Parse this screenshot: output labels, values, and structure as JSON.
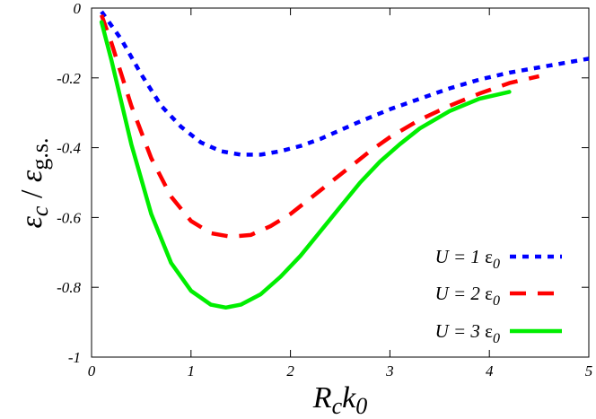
{
  "chart_data": {
    "type": "line",
    "xlabel": {
      "main": "R",
      "sub1": "c",
      "mid": "k",
      "sub2": "0"
    },
    "ylabel": {
      "main1": "ε",
      "sub1": "c",
      "sep": " / ",
      "main2": "ε",
      "sub2": "g.s."
    },
    "xlim": [
      0,
      5
    ],
    "ylim": [
      -1,
      0
    ],
    "xticks": [
      0,
      1,
      2,
      3,
      4,
      5
    ],
    "xtick_labels": [
      "0",
      "1",
      "2",
      "3",
      "4",
      "5"
    ],
    "yticks": [
      0,
      -0.2,
      -0.4,
      -0.6,
      -0.8,
      -1
    ],
    "ytick_labels": [
      "0",
      "-0.2",
      "-0.4",
      "-0.6",
      "-0.8",
      "-1"
    ],
    "grid": false,
    "legend_position": "bottom-right",
    "series": [
      {
        "name": "U = 1 ε0",
        "legend_parts": {
          "italic": "U = 1",
          "eps": "ε",
          "sub": "0"
        },
        "color": "#0000ff",
        "dash": "dotted",
        "x": [
          0.1,
          0.3,
          0.5,
          0.7,
          0.9,
          1.1,
          1.3,
          1.5,
          1.7,
          1.9,
          2.1,
          2.3,
          2.5,
          2.7,
          3.0,
          3.3,
          3.6,
          3.9,
          4.2,
          4.5,
          4.8,
          5.0
        ],
        "y": [
          -0.01,
          -0.09,
          -0.19,
          -0.28,
          -0.34,
          -0.385,
          -0.41,
          -0.42,
          -0.42,
          -0.41,
          -0.395,
          -0.375,
          -0.35,
          -0.325,
          -0.29,
          -0.26,
          -0.23,
          -0.205,
          -0.185,
          -0.17,
          -0.155,
          -0.145
        ]
      },
      {
        "name": "U = 2 ε0",
        "legend_parts": {
          "italic": "U = 2",
          "eps": "ε",
          "sub": "0"
        },
        "color": "#ff0000",
        "dash": "dashed",
        "x": [
          0.1,
          0.2,
          0.4,
          0.6,
          0.8,
          1.0,
          1.2,
          1.4,
          1.6,
          1.8,
          2.0,
          2.2,
          2.4,
          2.6,
          2.8,
          3.0,
          3.3,
          3.6,
          3.9,
          4.2,
          4.5
        ],
        "y": [
          -0.02,
          -0.1,
          -0.28,
          -0.43,
          -0.54,
          -0.61,
          -0.645,
          -0.655,
          -0.65,
          -0.625,
          -0.59,
          -0.545,
          -0.5,
          -0.455,
          -0.41,
          -0.37,
          -0.32,
          -0.28,
          -0.245,
          -0.215,
          -0.195
        ]
      },
      {
        "name": "U = 3 ε0",
        "legend_parts": {
          "italic": "U = 3",
          "eps": "ε",
          "sub": "0"
        },
        "color": "#00ee00",
        "dash": "solid",
        "x": [
          0.1,
          0.2,
          0.4,
          0.6,
          0.8,
          1.0,
          1.2,
          1.35,
          1.5,
          1.7,
          1.9,
          2.1,
          2.3,
          2.5,
          2.7,
          2.9,
          3.1,
          3.3,
          3.6,
          3.9,
          4.2
        ],
        "y": [
          -0.04,
          -0.15,
          -0.39,
          -0.59,
          -0.73,
          -0.81,
          -0.85,
          -0.858,
          -0.85,
          -0.82,
          -0.77,
          -0.71,
          -0.64,
          -0.57,
          -0.5,
          -0.44,
          -0.39,
          -0.345,
          -0.295,
          -0.26,
          -0.24
        ]
      }
    ]
  }
}
